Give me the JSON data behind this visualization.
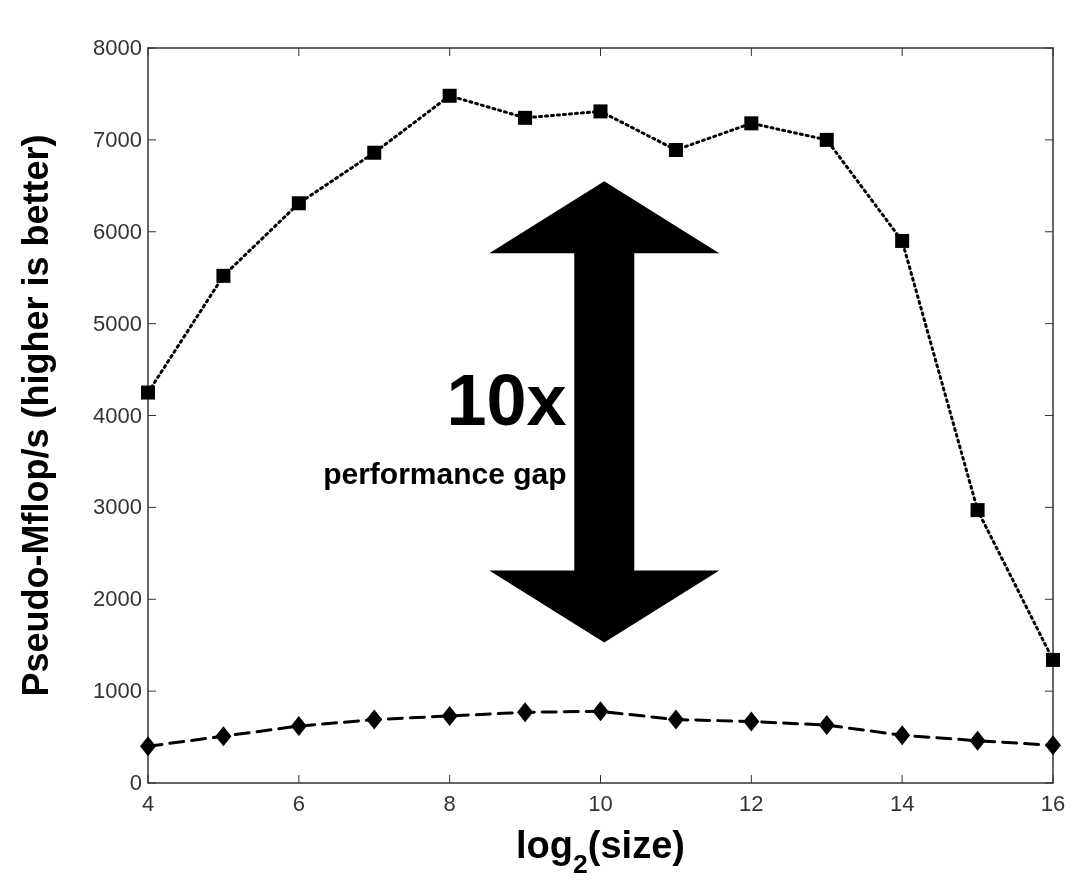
{
  "chart_data": {
    "type": "line",
    "xlabel": "log$_{2}$(size)",
    "ylabel": "Pseudo-Mflop/s (higher is better)",
    "x": [
      4,
      5,
      6,
      7,
      8,
      9,
      10,
      11,
      12,
      13,
      14,
      15,
      16
    ],
    "series": [
      {
        "color": "#000000",
        "marker": "square",
        "line_style": "dotted",
        "values": [
          4250,
          5520,
          6310,
          6860,
          7480,
          7240,
          7310,
          6890,
          7180,
          7000,
          5900,
          2970,
          1340
        ]
      },
      {
        "color": "#000000",
        "marker": "diamond",
        "line_style": "dashed",
        "values": [
          400,
          510,
          620,
          690,
          730,
          770,
          780,
          690,
          670,
          630,
          520,
          460,
          410
        ]
      }
    ],
    "annotations": [
      "10x",
      "performance gap"
    ],
    "xlim": [
      4,
      16
    ],
    "xticks": [
      4,
      6,
      8,
      10,
      12,
      14,
      16
    ],
    "ylim": [
      0,
      8000
    ],
    "yticks": [
      0,
      1000,
      2000,
      3000,
      4000,
      5000,
      6000,
      7000,
      8000
    ],
    "grid": false
  }
}
